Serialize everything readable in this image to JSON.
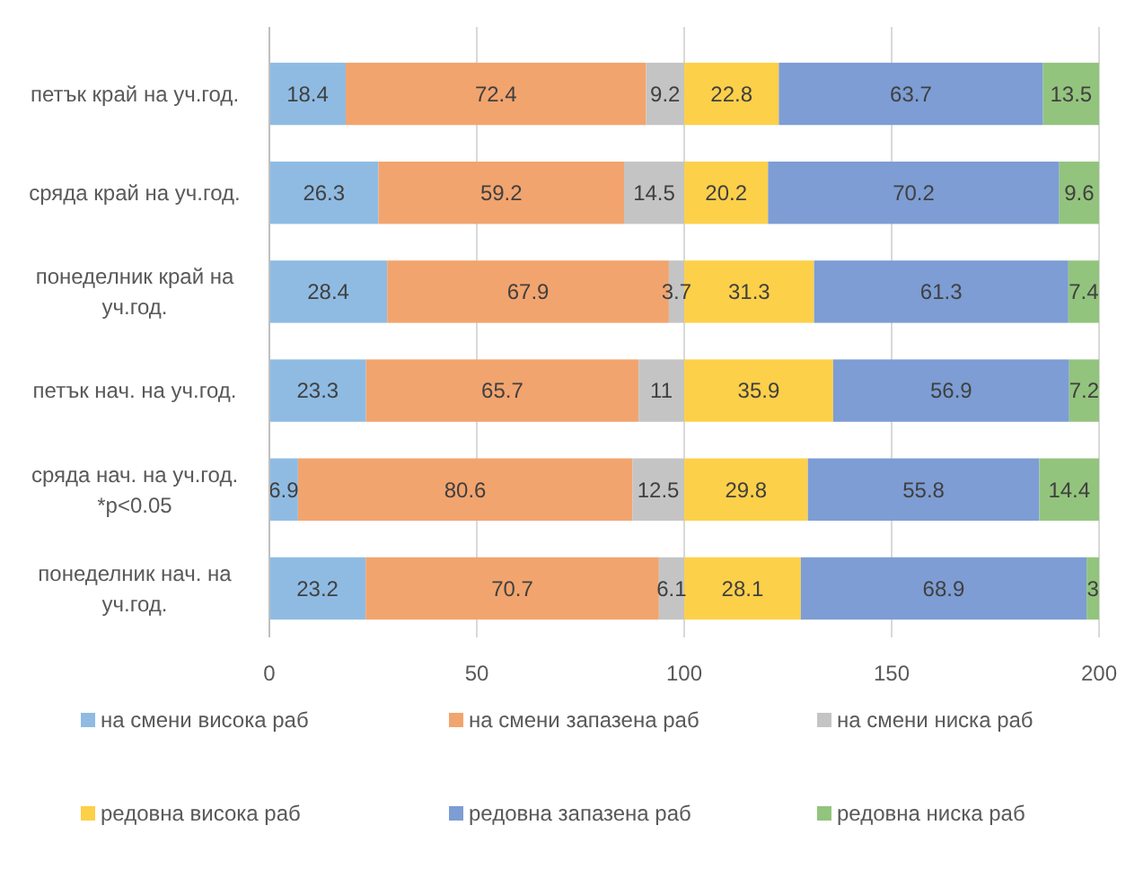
{
  "chart_data": {
    "type": "bar",
    "orientation": "horizontal",
    "stacked": true,
    "data_labels": true,
    "grid": "x",
    "legend": "bottom",
    "categories": [
      "петък край на уч.год.",
      "сряда край на уч.год.",
      "понеделник край на уч.год.",
      "петък нач. на уч.год.",
      "сряда нач. на уч.год. *p<0.05",
      "понеделник нач. на уч.год."
    ],
    "xlim": [
      0,
      200
    ],
    "xticks": [
      0,
      50,
      100,
      150,
      200
    ],
    "series": [
      {
        "name": "на смени висока раб",
        "color": "#8fbbe3",
        "values": [
          18.4,
          26.3,
          28.4,
          23.3,
          6.9,
          23.2
        ]
      },
      {
        "name": "на смени запазена раб",
        "color": "#f2a46e",
        "values": [
          72.4,
          59.2,
          67.9,
          65.7,
          80.6,
          70.7
        ]
      },
      {
        "name": "на смени ниска раб",
        "color": "#c4c4c4",
        "values": [
          9.2,
          14.5,
          3.7,
          11,
          12.5,
          6.1
        ]
      },
      {
        "name": "редовна висока раб",
        "color": "#fdd04a",
        "values": [
          22.8,
          20.2,
          31.3,
          35.9,
          29.8,
          28.1
        ]
      },
      {
        "name": "редовна запазена раб",
        "color": "#7d9dd4",
        "values": [
          63.7,
          70.2,
          61.3,
          56.9,
          55.8,
          68.9
        ]
      },
      {
        "name": "редовна ниска раб",
        "color": "#93c47d",
        "values": [
          13.5,
          9.6,
          7.4,
          7.2,
          14.4,
          3
        ]
      }
    ]
  }
}
